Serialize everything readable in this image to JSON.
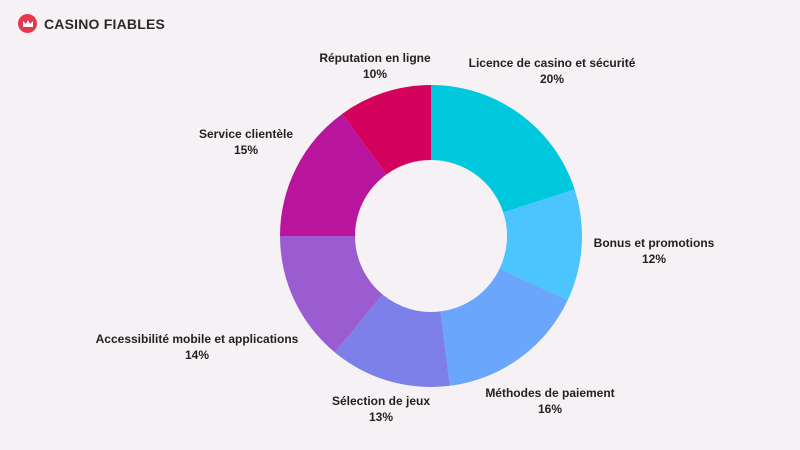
{
  "brand": {
    "name": "CASINO FIABLES",
    "icon": "crown-icon",
    "accent": "#e5384f"
  },
  "chart_data": {
    "type": "pie",
    "variant": "donut",
    "title": "",
    "unit": "%",
    "slices": [
      {
        "label": "Licence de casino et sécurité",
        "value": 20,
        "value_label": "20%",
        "color": "#00c8dc"
      },
      {
        "label": "Bonus et promotions",
        "value": 12,
        "value_label": "12%",
        "color": "#4cc4fd"
      },
      {
        "label": "Méthodes de paiement",
        "value": 16,
        "value_label": "16%",
        "color": "#6aa6fb"
      },
      {
        "label": "Sélection de jeux",
        "value": 13,
        "value_label": "13%",
        "color": "#7c80e8"
      },
      {
        "label": "Accessibilité mobile et applications",
        "value": 14,
        "value_label": "14%",
        "color": "#9a5cd0"
      },
      {
        "label": "Service clientèle",
        "value": 15,
        "value_label": "15%",
        "color": "#b8149e"
      },
      {
        "label": "Réputation en ligne",
        "value": 10,
        "value_label": "10%",
        "color": "#d4025c"
      }
    ]
  }
}
